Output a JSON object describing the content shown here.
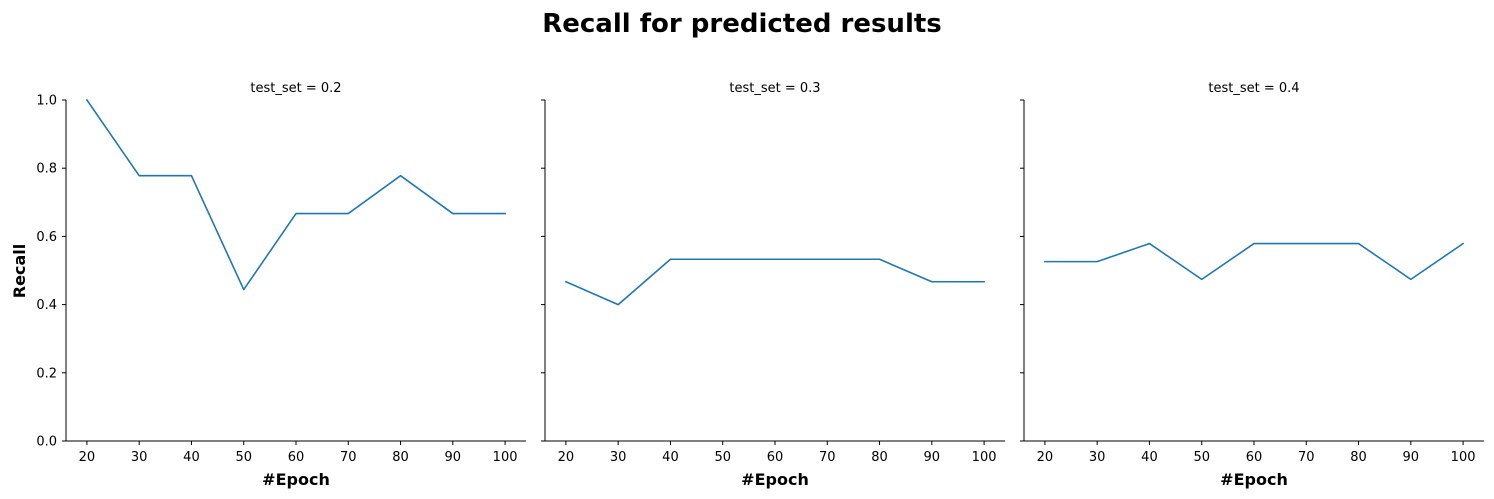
{
  "figure": {
    "title": "Recall for predicted results",
    "ylabel": "Recall",
    "xlabel": "#Epoch"
  },
  "colors": {
    "line": "#1f77b4",
    "axis": "#000000"
  },
  "chart_data": [
    {
      "type": "line",
      "title": "test_set = 0.2",
      "xlabel": "#Epoch",
      "ylabel": "Recall",
      "x": [
        20,
        30,
        40,
        50,
        60,
        70,
        80,
        90,
        100
      ],
      "xticks": [
        "20",
        "30",
        "40",
        "50",
        "60",
        "70",
        "80",
        "90",
        "100"
      ],
      "yticks": [
        "0.0",
        "0.2",
        "0.4",
        "0.6",
        "0.8",
        "1.0"
      ],
      "xlim": [
        16,
        104
      ],
      "ylim": [
        0,
        1
      ],
      "series": [
        {
          "values": [
            1.0,
            0.778,
            0.778,
            0.444,
            0.667,
            0.667,
            0.778,
            0.667,
            0.667
          ]
        }
      ]
    },
    {
      "type": "line",
      "title": "test_set = 0.3",
      "xlabel": "#Epoch",
      "ylabel": "",
      "x": [
        20,
        30,
        40,
        50,
        60,
        70,
        80,
        90,
        100
      ],
      "xticks": [
        "20",
        "30",
        "40",
        "50",
        "60",
        "70",
        "80",
        "90",
        "100"
      ],
      "yticks": [],
      "xlim": [
        16,
        104
      ],
      "ylim": [
        0,
        1
      ],
      "series": [
        {
          "values": [
            0.467,
            0.4,
            0.533,
            0.533,
            0.533,
            0.533,
            0.533,
            0.467,
            0.467
          ]
        }
      ]
    },
    {
      "type": "line",
      "title": "test_set = 0.4",
      "xlabel": "#Epoch",
      "ylabel": "",
      "x": [
        20,
        30,
        40,
        50,
        60,
        70,
        80,
        90,
        100
      ],
      "xticks": [
        "20",
        "30",
        "40",
        "50",
        "60",
        "70",
        "80",
        "90",
        "100"
      ],
      "yticks": [],
      "xlim": [
        16,
        104
      ],
      "ylim": [
        0,
        1
      ],
      "series": [
        {
          "values": [
            0.526,
            0.526,
            0.579,
            0.474,
            0.579,
            0.579,
            0.579,
            0.474,
            0.579
          ]
        }
      ]
    }
  ]
}
